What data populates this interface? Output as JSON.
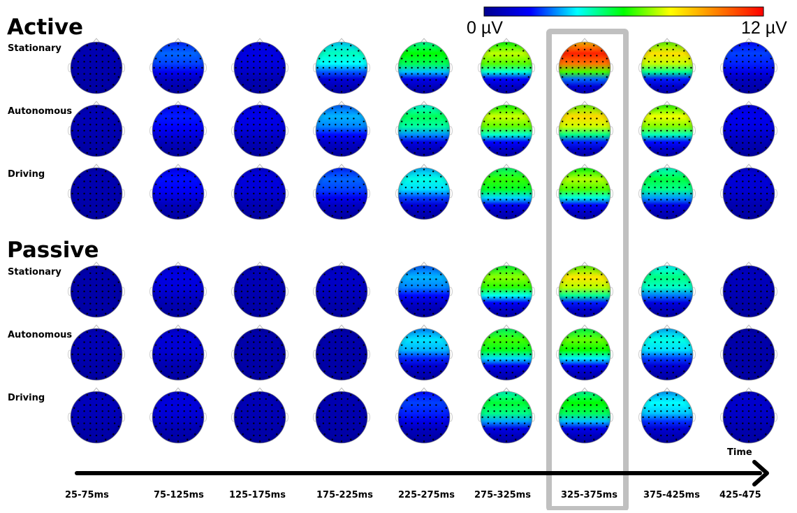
{
  "colorbar": {
    "min_label": "0 µV",
    "max_label": "12 µV",
    "min": 0,
    "max": 12,
    "colors": [
      "#00008f",
      "#0000ff",
      "#00ffff",
      "#00ff00",
      "#ffff00",
      "#ff8000",
      "#ff0000"
    ]
  },
  "groups": [
    {
      "title": "Active",
      "rows": [
        "Stationary",
        "Autonomous",
        "Driving"
      ]
    },
    {
      "title": "Passive",
      "rows": [
        "Stationary",
        "Autonomous",
        "Driving"
      ]
    }
  ],
  "time_windows": [
    "25-75ms",
    "75-125ms",
    "125-175ms",
    "175-225ms",
    "225-275ms",
    "275-325ms",
    "325-375ms",
    "375-425ms",
    "425-475"
  ],
  "time_axis_label": "Time",
  "highlight_window_index": 6,
  "highlight_color": "#c0c0c0",
  "maps_peak_uV": [
    [
      0.6,
      2.8,
      1.5,
      4.5,
      6.0,
      7.5,
      11.5,
      8.5,
      2.5
    ],
    [
      0.7,
      2.2,
      1.6,
      3.4,
      5.3,
      7.6,
      8.6,
      7.9,
      1.7
    ],
    [
      0.6,
      2.1,
      1.4,
      2.8,
      4.2,
      6.4,
      7.4,
      5.5,
      1.3
    ],
    [
      0.5,
      1.5,
      0.7,
      1.0,
      3.4,
      7.1,
      8.4,
      5.0,
      0.8
    ],
    [
      0.7,
      1.3,
      0.5,
      0.5,
      3.8,
      6.5,
      6.8,
      4.2,
      0.5
    ],
    [
      0.8,
      1.4,
      0.7,
      0.6,
      2.5,
      5.6,
      6.0,
      4.0,
      1.1
    ]
  ]
}
